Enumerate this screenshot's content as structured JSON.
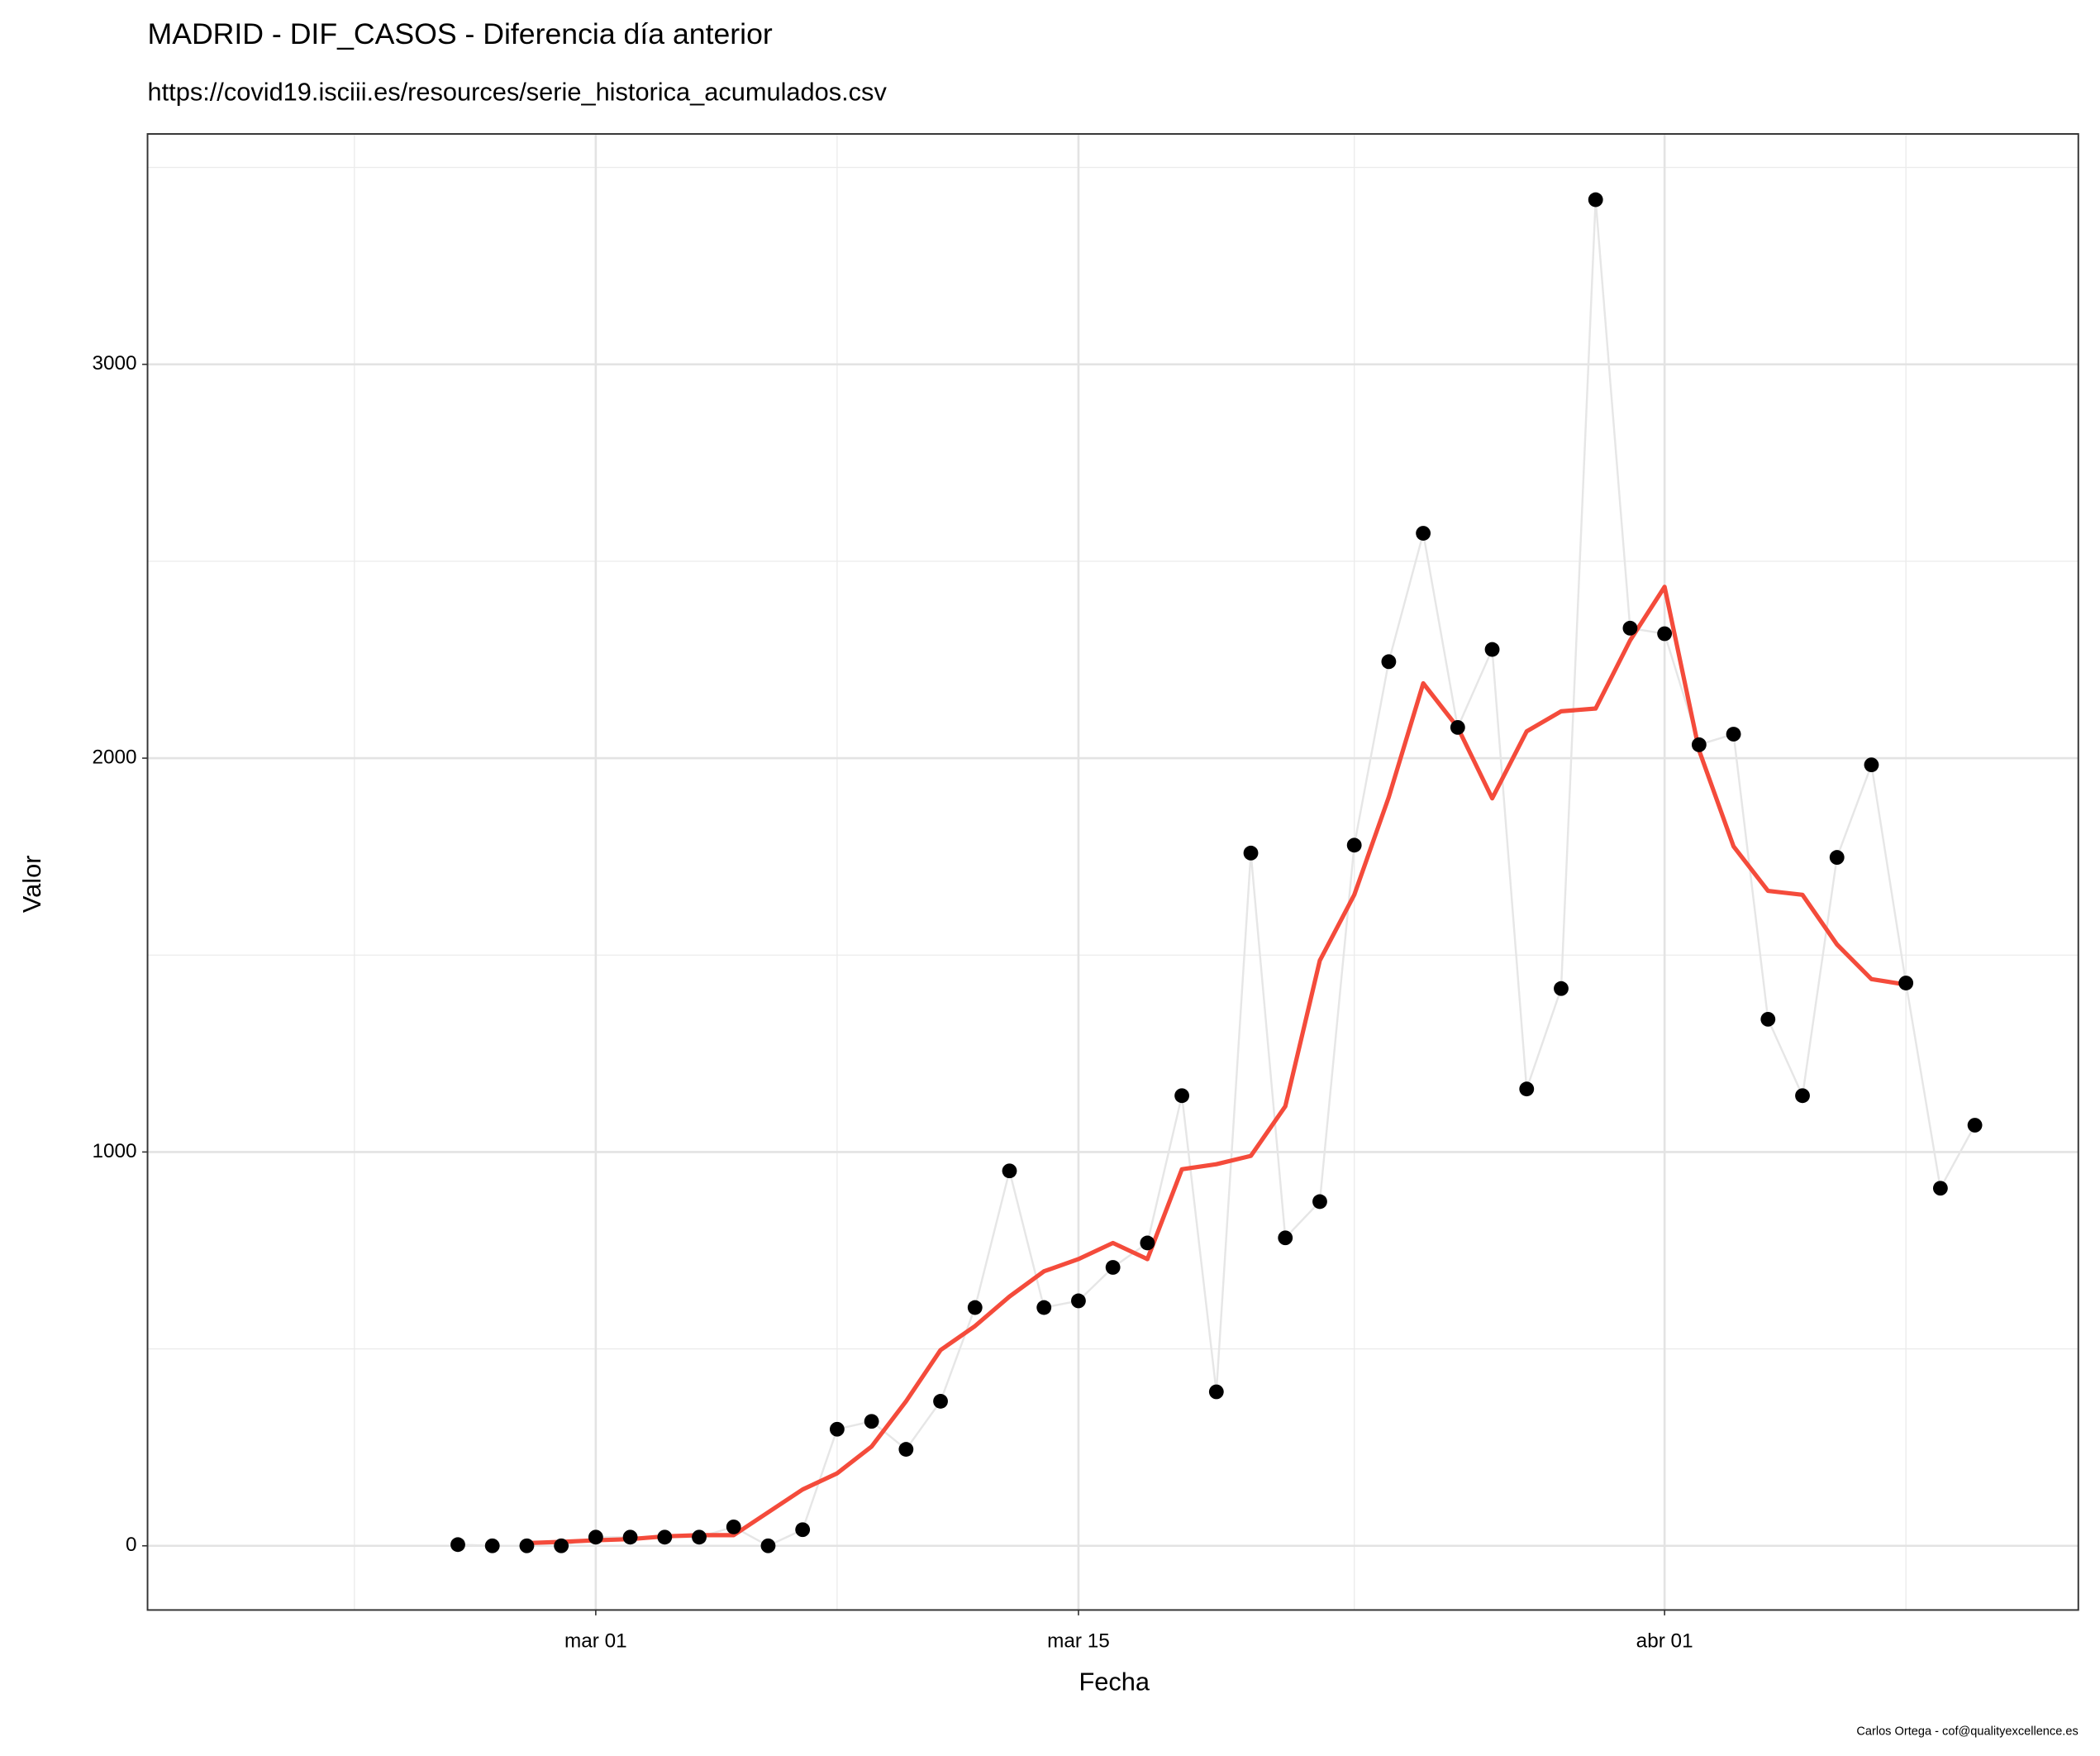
{
  "chart_data": {
    "type": "line",
    "title": "MADRID - DIF_CASOS - Diferencia día anterior",
    "subtitle": "https://covid19.isciii.es/resources/serie_historica_acumulados.csv",
    "x_label": "Fecha",
    "y_label": "Valor",
    "caption": "Carlos Ortega - cof@qualityexcellence.es",
    "x": [
      "02-26",
      "02-27",
      "02-28",
      "02-29",
      "03-01",
      "03-02",
      "03-03",
      "03-04",
      "03-05",
      "03-06",
      "03-07",
      "03-08",
      "03-09",
      "03-10",
      "03-11",
      "03-12",
      "03-13",
      "03-14",
      "03-15",
      "03-16",
      "03-17",
      "03-18",
      "03-19",
      "03-20",
      "03-21",
      "03-22",
      "03-23",
      "03-24",
      "03-25",
      "03-26",
      "03-27",
      "03-28",
      "03-29",
      "03-30",
      "03-31",
      "04-01",
      "04-02",
      "04-03",
      "04-04",
      "04-05",
      "04-06",
      "04-07",
      "04-08",
      "04-09",
      "04-10"
    ],
    "series": [
      {
        "color": "#000000",
        "line_color": "#e6e6e6",
        "markers": true,
        "values": [
          3,
          0,
          0,
          0,
          22,
          22,
          22,
          22,
          48,
          0,
          41,
          296,
          316,
          245,
          367,
          605,
          952,
          605,
          622,
          707,
          769,
          1143,
          391,
          1759,
          782,
          874,
          1779,
          2245,
          2571,
          2078,
          2276,
          1160,
          1415,
          3418,
          2330,
          2316,
          2034,
          2061,
          1337,
          1143,
          1748,
          1983,
          1429,
          908,
          1068
        ]
      },
      {
        "color": "#f44b3b",
        "markers": false,
        "values": [
          null,
          null,
          7,
          10,
          14,
          17,
          24,
          27,
          27,
          85,
          143,
          184,
          252,
          367,
          497,
          558,
          633,
          697,
          728,
          769,
          728,
          956,
          969,
          990,
          1116,
          1486,
          1653,
          1901,
          2190,
          2078,
          1898,
          2068,
          2119,
          2126,
          2299,
          2435,
          2020,
          1776,
          1663,
          1653,
          1527,
          1439,
          1425,
          null,
          null
        ]
      }
    ],
    "xlim": [
      "02-17",
      "04-13"
    ],
    "xticks": [
      {
        "value": "03-01",
        "label": "mar 01"
      },
      {
        "value": "03-15",
        "label": "mar 15"
      },
      {
        "value": "04-01",
        "label": "abr 01"
      }
    ],
    "minor_xticks": [
      "02-23",
      "03-08",
      "03-23",
      "04-08"
    ],
    "ylim": [
      -163,
      3585
    ],
    "yticks": [
      0,
      1000,
      2000,
      3000
    ],
    "minor_yticks": [
      500,
      1500,
      2500,
      3500
    ],
    "grid": true
  }
}
